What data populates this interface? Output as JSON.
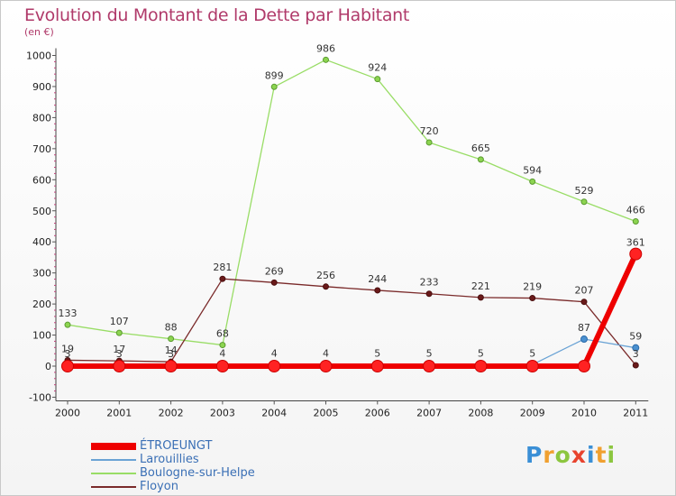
{
  "title": "Evolution du Montant de la Dette par Habitant",
  "unit": "(en €)",
  "logo": {
    "letters": [
      "P",
      "r",
      "o",
      "x",
      "i",
      "t",
      "i"
    ],
    "colors": [
      "#3a8fd6",
      "#f0a030",
      "#8cc63f",
      "#e8432e",
      "#3a8fd6",
      "#f0a030",
      "#8cc63f"
    ]
  },
  "chart_data": {
    "type": "line",
    "x": [
      "2000",
      "2001",
      "2002",
      "2003",
      "2004",
      "2005",
      "2006",
      "2007",
      "2008",
      "2009",
      "2010",
      "2011"
    ],
    "ylim": [
      -100,
      1000
    ],
    "yticks": [
      "-100",
      "0",
      "100",
      "200",
      "300",
      "400",
      "500",
      "600",
      "700",
      "800",
      "900",
      "1000"
    ],
    "grid": false,
    "legend_position": "bottom-left",
    "series": [
      {
        "name": "ÉTROEUNGT",
        "color": "#ee0000",
        "values": [
          0,
          0,
          0,
          0,
          0,
          0,
          0,
          0,
          0,
          0,
          0,
          361
        ],
        "labels": [
          "",
          "",
          "",
          "",
          "",
          "",
          "",
          "",
          "",
          "",
          "",
          "361"
        ]
      },
      {
        "name": "Larouillies",
        "color": "#6aa3d5",
        "values": [
          3,
          3,
          3,
          4,
          4,
          4,
          5,
          5,
          5,
          5,
          87,
          59
        ],
        "labels": [
          "3",
          "3",
          "3",
          "4",
          "4",
          "4",
          "5",
          "5",
          "5",
          "5",
          "87",
          "59"
        ]
      },
      {
        "name": "Boulogne-sur-Helpe",
        "color": "#99dd66",
        "values": [
          133,
          107,
          88,
          68,
          899,
          986,
          924,
          720,
          665,
          594,
          529,
          466
        ],
        "labels": [
          "133",
          "107",
          "88",
          "68",
          "899",
          "986",
          "924",
          "720",
          "665",
          "594",
          "529",
          "466"
        ]
      },
      {
        "name": "Floyon",
        "color": "#7a2a2a",
        "values": [
          19,
          17,
          14,
          281,
          269,
          256,
          244,
          233,
          221,
          219,
          207,
          3
        ],
        "labels": [
          "19",
          "17",
          "14",
          "281",
          "269",
          "256",
          "244",
          "233",
          "221",
          "219",
          "207",
          "3"
        ]
      }
    ]
  }
}
